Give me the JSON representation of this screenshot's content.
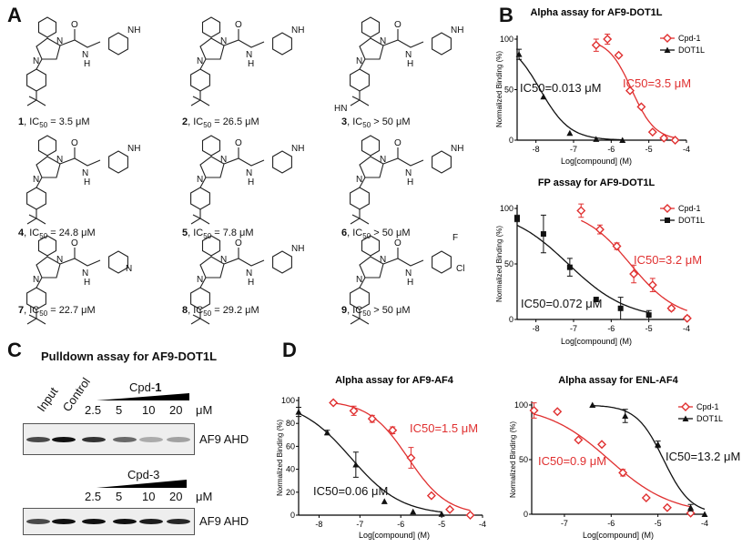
{
  "panels": {
    "A": "A",
    "B": "B",
    "C": "C",
    "D": "D"
  },
  "compounds": [
    {
      "id": "1",
      "ic50": "= 3.5 μM"
    },
    {
      "id": "2",
      "ic50": "= 26.5 μM"
    },
    {
      "id": "3",
      "ic50": "> 50 μM"
    },
    {
      "id": "4",
      "ic50": "= 24.8 μM"
    },
    {
      "id": "5",
      "ic50": "= 7.8 μM"
    },
    {
      "id": "6",
      "ic50": "> 50 μM"
    },
    {
      "id": "7",
      "ic50": "= 22.7 μM"
    },
    {
      "id": "8",
      "ic50": "= 29.2 μM"
    },
    {
      "id": "9",
      "ic50": "> 50 μM"
    }
  ],
  "atoms": {
    "N": "N",
    "NH": "NH",
    "H": "H",
    "O": "O",
    "HN": "HN",
    "F": "F",
    "Cl": "Cl"
  },
  "ic50_prefix": "IC",
  "ic50_sub": "50",
  "pulldown": {
    "title": "Pulldown assay for AF9-DOT1L",
    "lanes_top": [
      "Input",
      "Control"
    ],
    "cpd1_label": "Cpd-1",
    "cpd3_label": "Cpd-3",
    "concentrations": [
      "2.5",
      "5",
      "10",
      "20"
    ],
    "unit": "μM",
    "protein": "AF9 AHD",
    "blot1_intensity": [
      0.75,
      1.0,
      0.85,
      0.6,
      0.3,
      0.35
    ],
    "blot2_intensity": [
      0.75,
      1.0,
      1.0,
      1.0,
      0.95,
      0.9
    ]
  },
  "chart_data": [
    {
      "type": "line",
      "title": "Alpha assay for AF9-DOT1L",
      "xlabel": "Log[compound] (M)",
      "ylabel": "Normalized Binding (%)",
      "xlim": [
        -8.5,
        -4
      ],
      "ylim": [
        0,
        100
      ],
      "xticks": [
        -8,
        -7,
        -6,
        -5,
        -4
      ],
      "yticks": [
        0,
        50,
        100
      ],
      "legend": "top-right",
      "grid": false,
      "series": [
        {
          "name": "Cpd-1",
          "color": "#e03030",
          "marker": "diamond-open",
          "ic50_label": "IC50=3.5 μM",
          "ic50_uM": 3.5,
          "x": [
            -6.4,
            -6.1,
            -5.8,
            -5.5,
            -5.2,
            -4.9,
            -4.6,
            -4.3
          ],
          "y": [
            94,
            100,
            84,
            49,
            33,
            8,
            2,
            0
          ],
          "err": [
            6,
            5,
            0,
            0,
            0,
            0,
            0,
            0
          ]
        },
        {
          "name": "DOT1L",
          "color": "#111111",
          "marker": "triangle",
          "ic50_label": "IC50=0.013 μM",
          "ic50_uM": 0.013,
          "x": [
            -8.45,
            -7.8,
            -7.1,
            -6.4,
            -5.7
          ],
          "y": [
            85,
            43,
            7,
            1,
            0
          ],
          "err": [
            5,
            0,
            0,
            0,
            0
          ]
        }
      ]
    },
    {
      "type": "line",
      "title": "FP assay for AF9-DOT1L",
      "xlabel": "Log[compound] (M)",
      "ylabel": "Normalized Binding (%)",
      "xlim": [
        -8.5,
        -4
      ],
      "ylim": [
        0,
        100
      ],
      "xticks": [
        -8,
        -7,
        -6,
        -5,
        -4
      ],
      "yticks": [
        0,
        50,
        100
      ],
      "legend": "top-right",
      "grid": false,
      "series": [
        {
          "name": "Cpd-1",
          "color": "#e03030",
          "marker": "diamond-open",
          "ic50_label": "IC50=3.2 μM",
          "ic50_uM": 3.2,
          "x": [
            -6.8,
            -6.3,
            -5.85,
            -5.4,
            -4.9,
            -4.4,
            -3.98
          ],
          "y": [
            98,
            81,
            66,
            41,
            31,
            10,
            1
          ],
          "err": [
            6,
            4,
            3,
            8,
            6,
            2,
            2
          ]
        },
        {
          "name": "DOT1L",
          "color": "#111111",
          "marker": "square",
          "ic50_label": "IC50=0.072 μM",
          "ic50_uM": 0.072,
          "x": [
            -8.5,
            -7.8,
            -7.1,
            -6.4,
            -5.75,
            -5.0
          ],
          "y": [
            91,
            77,
            47,
            18,
            10,
            4
          ],
          "err": [
            3,
            17,
            8,
            0,
            10,
            4
          ]
        }
      ]
    },
    {
      "type": "line",
      "title": "Alpha assay for AF9-AF4",
      "xlabel": "Log[compound] (M)",
      "ylabel": "Normalized Binding (%)",
      "xlim": [
        -8.5,
        -4
      ],
      "ylim": [
        0,
        100
      ],
      "xticks": [
        -8,
        -7,
        -6,
        -5,
        -4
      ],
      "yticks": [
        0,
        20,
        40,
        60,
        80,
        100
      ],
      "legend": "none",
      "grid": false,
      "series": [
        {
          "name": "Cpd-1",
          "color": "#e03030",
          "marker": "diamond-open",
          "ic50_label": "IC50=1.5 μM",
          "ic50_uM": 1.5,
          "x": [
            -7.65,
            -7.15,
            -6.7,
            -6.2,
            -5.75,
            -5.25,
            -4.8,
            -4.3
          ],
          "y": [
            98,
            91,
            84,
            74,
            50,
            17,
            5,
            0
          ],
          "err": [
            0,
            4,
            3,
            3,
            9,
            0,
            0,
            0
          ]
        },
        {
          "name": "DOT1L",
          "color": "#111111",
          "marker": "triangle",
          "ic50_label": "IC50=0.06 μM",
          "ic50_uM": 0.06,
          "x": [
            -8.5,
            -7.8,
            -7.1,
            -6.4,
            -5.7,
            -5.0
          ],
          "y": [
            90,
            72,
            44,
            12,
            3,
            1
          ],
          "err": [
            4,
            2,
            11,
            0,
            0,
            0
          ]
        }
      ]
    },
    {
      "type": "line",
      "title": "Alpha assay for ENL-AF4",
      "xlabel": "Log[compound] (M)",
      "ylabel": "Normalized Binding (%)",
      "xlim": [
        -7.7,
        -4
      ],
      "ylim": [
        0,
        100
      ],
      "xticks": [
        -7,
        -6,
        -5,
        -4
      ],
      "yticks": [
        0,
        50,
        100
      ],
      "legend": "top-right",
      "grid": false,
      "series": [
        {
          "name": "Cpd-1",
          "color": "#e03030",
          "marker": "diamond-open",
          "ic50_label": "IC50=0.9 μM",
          "ic50_uM": 0.9,
          "x": [
            -7.65,
            -7.15,
            -6.7,
            -6.2,
            -5.75,
            -5.25,
            -4.8,
            -4.3
          ],
          "y": [
            95,
            94,
            68,
            64,
            38,
            15,
            6,
            1
          ],
          "err": [
            7,
            0,
            0,
            0,
            3,
            0,
            0,
            0
          ]
        },
        {
          "name": "DOT1L",
          "color": "#111111",
          "marker": "triangle",
          "ic50_label": "IC50=13.2 μM",
          "ic50_uM": 13.2,
          "x": [
            -6.4,
            -5.7,
            -5.0,
            -4.3,
            -4.0
          ],
          "y": [
            100,
            90,
            64,
            6,
            0
          ],
          "err": [
            0,
            6,
            3,
            3,
            0
          ]
        }
      ]
    }
  ]
}
